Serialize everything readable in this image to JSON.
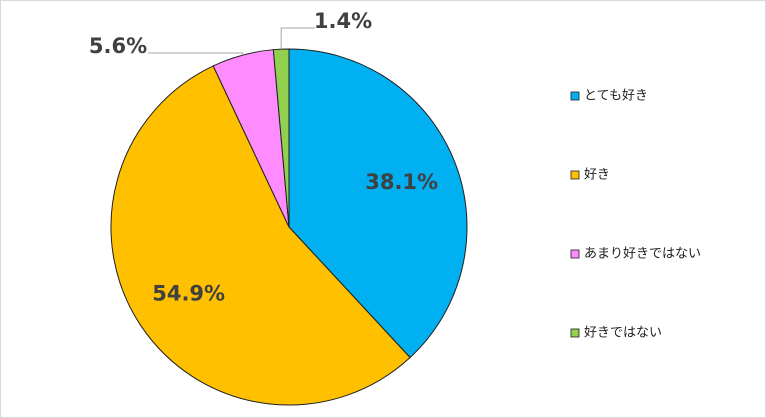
{
  "chart_data": {
    "type": "pie",
    "categories": [
      "とても好き",
      "好き",
      "あまり好きではない",
      "好きではない"
    ],
    "values": [
      38.1,
      54.9,
      5.6,
      1.4
    ],
    "value_labels": [
      "38.1%",
      "54.9%",
      "5.6%",
      "1.4%"
    ],
    "colors": [
      "#00b0f0",
      "#ffc000",
      "#ff8cff",
      "#92d050"
    ],
    "legend": "right"
  }
}
